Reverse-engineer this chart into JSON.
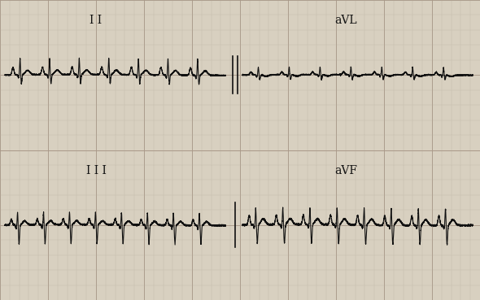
{
  "background_color": "#d8d0c0",
  "grid_minor_color": "#b8b0a0",
  "grid_major_color": "#a89888",
  "ecg_color": "#111111",
  "label_color": "#111111",
  "fig_width": 5.9,
  "fig_height": 3.69,
  "labels": {
    "top_left": "I I",
    "top_right": "aVL",
    "bottom_left": "I I I",
    "bottom_right": "aVF"
  },
  "label_fontsize": 10,
  "border_color": "#222222"
}
